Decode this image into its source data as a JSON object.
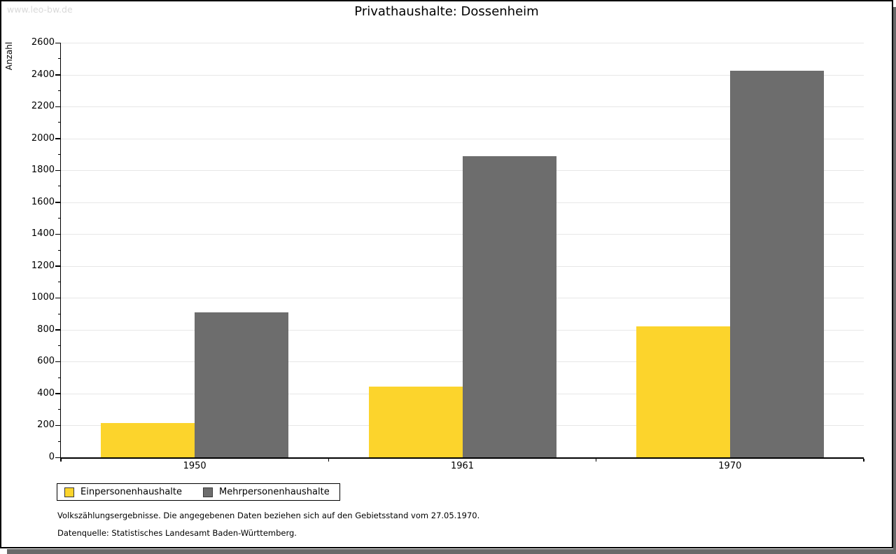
{
  "watermark": "www.leo-bw.de",
  "title": "Privathaushalte: Dossenheim",
  "footer": {
    "line1": "Volkszählungsergebnisse. Die angegebenen Daten beziehen sich auf den Gebietsstand vom 27.05.1970.",
    "line2": "Datenquelle: Statistisches Landesamt Baden-Württemberg."
  },
  "colors": {
    "series_einpersonen": "#FCD42C",
    "series_mehrpersonen": "#6D6D6D",
    "gridline": "#E7E7E7",
    "watermark": "#D9D9D9",
    "axis": "#000000"
  },
  "chart_data": {
    "type": "bar",
    "title": "Privathaushalte: Dossenheim",
    "categories": [
      "1950",
      "1961",
      "1970"
    ],
    "series": [
      {
        "name": "Einpersonenhaushalte",
        "color": "#FCD42C",
        "values": [
          215,
          445,
          820
        ]
      },
      {
        "name": "Mehrpersonenhaushalte",
        "color": "#6D6D6D",
        "values": [
          910,
          1890,
          2425
        ]
      }
    ],
    "xlabel": "",
    "ylabel": "Anzahl",
    "ylim": [
      0,
      2600
    ],
    "ytick_step": 200,
    "minor_tick_step": 100,
    "grid": true,
    "legend_position": "bottom-left"
  }
}
